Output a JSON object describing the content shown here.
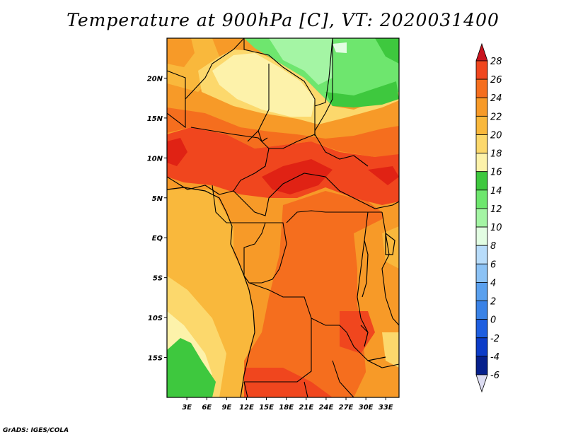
{
  "title": "Temperature at 900hPa [C], VT: 2020031400",
  "credit": "GrADS: IGES/COLA",
  "map": {
    "lon_range": [
      0,
      35
    ],
    "lat_range": [
      -20,
      25
    ],
    "lat_ticks": [
      {
        "value": 20,
        "label": "20N"
      },
      {
        "value": 15,
        "label": "15N"
      },
      {
        "value": 10,
        "label": "10N"
      },
      {
        "value": 5,
        "label": "5N"
      },
      {
        "value": 0,
        "label": "EQ"
      },
      {
        "value": -5,
        "label": "5S"
      },
      {
        "value": -10,
        "label": "10S"
      },
      {
        "value": -15,
        "label": "15S"
      }
    ],
    "lon_ticks": [
      {
        "value": 3,
        "label": "3E"
      },
      {
        "value": 6,
        "label": "6E"
      },
      {
        "value": 9,
        "label": "9E"
      },
      {
        "value": 12,
        "label": "12E"
      },
      {
        "value": 15,
        "label": "15E"
      },
      {
        "value": 18,
        "label": "18E"
      },
      {
        "value": 21,
        "label": "21E"
      },
      {
        "value": 24,
        "label": "24E"
      },
      {
        "value": 27,
        "label": "27E"
      },
      {
        "value": 30,
        "label": "30E"
      },
      {
        "value": 33,
        "label": "33E"
      }
    ]
  },
  "colorbar": {
    "levels": [
      {
        "label": "28",
        "color": "#e02214"
      },
      {
        "label": "26",
        "color": "#f0461e"
      },
      {
        "label": "24",
        "color": "#f56e1e"
      },
      {
        "label": "22",
        "color": "#f79a28"
      },
      {
        "label": "20",
        "color": "#f9b83c"
      },
      {
        "label": "18",
        "color": "#fcd86c"
      },
      {
        "label": "16",
        "color": "#fdf2aa"
      },
      {
        "label": "14",
        "color": "#3ec83e"
      },
      {
        "label": "12",
        "color": "#6ee66e"
      },
      {
        "label": "10",
        "color": "#a4f5a4"
      },
      {
        "label": "8",
        "color": "#e2fde2"
      },
      {
        "label": "6",
        "color": "#b8dcfa"
      },
      {
        "label": "4",
        "color": "#8cc2f5"
      },
      {
        "label": "2",
        "color": "#5aa0ee"
      },
      {
        "label": "0",
        "color": "#3a82e6"
      },
      {
        "label": "-2",
        "color": "#1e5ee0"
      },
      {
        "label": "-4",
        "color": "#0c3cc8"
      },
      {
        "label": "-6",
        "color": "#06208c"
      }
    ],
    "top_color": "#c8141e",
    "bottom_color": "#dcdcf2"
  }
}
